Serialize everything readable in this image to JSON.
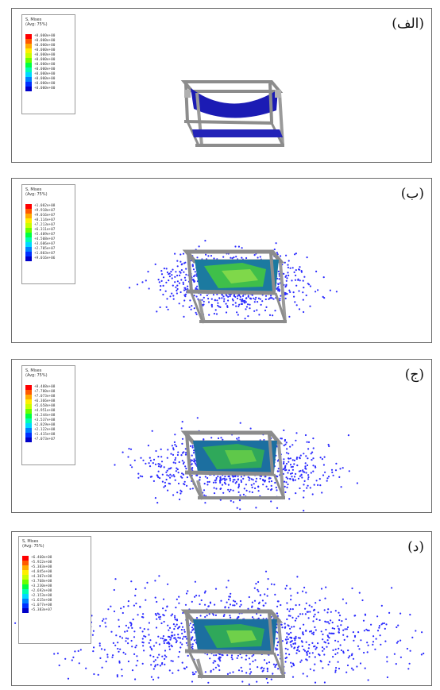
{
  "palette": [
    "#ff0000",
    "#ff5a00",
    "#ffaa00",
    "#ffee00",
    "#c8ff00",
    "#6aff00",
    "#00ff44",
    "#00ffb0",
    "#00d8ff",
    "#0080ff",
    "#0030ff",
    "#0000c8"
  ],
  "colors": {
    "frame": "#8c8c8c",
    "membrane": "#1b1bb4",
    "particles": "#2b2bff",
    "border": "#6b6b6b"
  },
  "panels": [
    {
      "label": "(الف)",
      "legend_title": "S, Mises\n(Avg: 75%)",
      "values": [
        "+0.000e+00",
        "+0.000e+00",
        "+0.000e+00",
        "+0.000e+00",
        "+0.000e+00",
        "+0.000e+00",
        "+0.000e+00",
        "+0.000e+00",
        "+0.000e+00",
        "+0.000e+00",
        "+0.000e+00",
        "+0.000e+00"
      ]
    },
    {
      "label": "(ب)",
      "legend_title": "S, Mises\n(Avg: 75%)",
      "values": [
        "+1.082e+08",
        "+9.918e+07",
        "+9.016e+07",
        "+8.114e+07",
        "+7.213e+07",
        "+6.311e+07",
        "+5.409e+07",
        "+4.508e+07",
        "+3.606e+07",
        "+2.705e+07",
        "+1.803e+07",
        "+9.016e+06"
      ]
    },
    {
      "label": "(ج)",
      "legend_title": "S, Mises\n(Avg: 75%)",
      "values": [
        "+8.488e+08",
        "+7.780e+08",
        "+7.073e+08",
        "+6.366e+08",
        "+5.658e+08",
        "+4.951e+08",
        "+4.244e+08",
        "+3.537e+08",
        "+2.829e+08",
        "+2.122e+08",
        "+1.415e+08",
        "+7.073e+07"
      ]
    },
    {
      "label": "(د)",
      "legend_title": "S, Mises\n(Avg: 75%)",
      "values": [
        "+6.460e+08",
        "+5.922e+08",
        "+5.383e+08",
        "+4.845e+08",
        "+4.307e+08",
        "+3.768e+08",
        "+3.230e+08",
        "+2.692e+08",
        "+2.153e+08",
        "+1.615e+08",
        "+1.077e+08",
        "+5.383e+07"
      ]
    }
  ]
}
